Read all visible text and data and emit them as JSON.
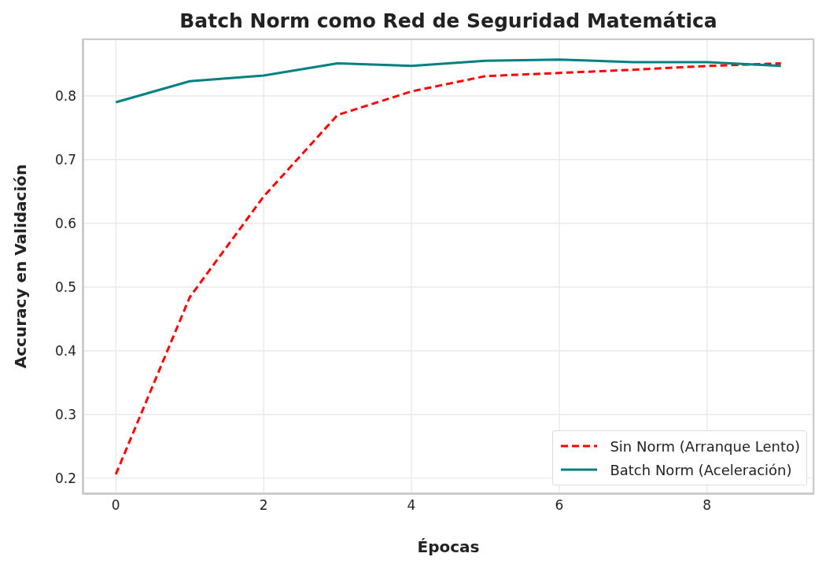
{
  "chart_data": {
    "type": "line",
    "title": "Batch Norm como Red de Seguridad Matemática",
    "xlabel": "Épocas",
    "ylabel": "Accuracy en Validación",
    "x": [
      0,
      1,
      2,
      3,
      4,
      5,
      6,
      7,
      8,
      9
    ],
    "series": [
      {
        "name": "Sin Norm (Arranque Lento)",
        "color": "#ff0000",
        "line_style": "dashed",
        "values": [
          0.206,
          0.484,
          0.642,
          0.77,
          0.807,
          0.831,
          0.836,
          0.841,
          0.847,
          0.851
        ]
      },
      {
        "name": "Batch Norm (Aceleración)",
        "color": "#008080",
        "line_style": "solid",
        "values": [
          0.79,
          0.823,
          0.832,
          0.851,
          0.847,
          0.855,
          0.857,
          0.853,
          0.853,
          0.847
        ]
      }
    ],
    "xlim": [
      -0.45,
      9.45
    ],
    "xticks": [
      0,
      2,
      4,
      6,
      8
    ],
    "ylim": [
      0.175,
      0.89
    ],
    "yticks": [
      0.2,
      0.3,
      0.4,
      0.5,
      0.6,
      0.7,
      0.8
    ],
    "grid": true,
    "legend": "bottom right",
    "marker": "none"
  }
}
